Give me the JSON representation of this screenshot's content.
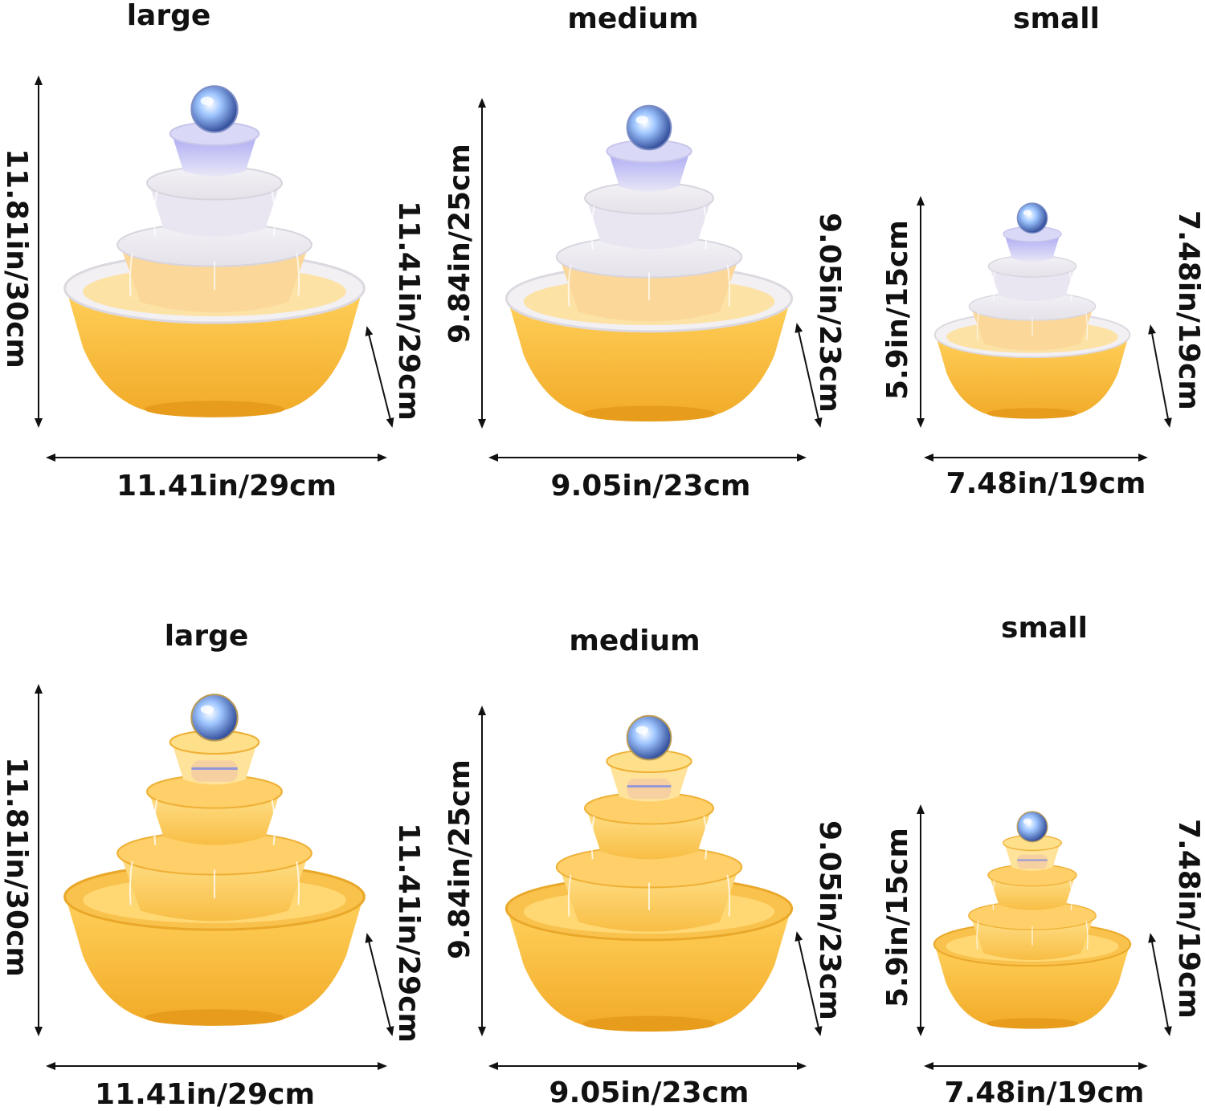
{
  "rows": [
    {
      "theme": "frosted",
      "panels": [
        {
          "size": "large",
          "height": "11.81in/30cm",
          "diagonal": "11.41in/29cm",
          "width": "11.41in/29cm"
        },
        {
          "size": "medium",
          "height": "9.84in/25cm",
          "diagonal": "9.05in/23cm",
          "width": "9.05in/23cm"
        },
        {
          "size": "small",
          "height": "5.9in/15cm",
          "diagonal": "7.48in/19cm",
          "width": "7.48in/19cm"
        }
      ]
    },
    {
      "theme": "amber",
      "panels": [
        {
          "size": "large",
          "height": "11.81in/30cm",
          "diagonal": "11.41in/29cm",
          "width": "11.41in/29cm"
        },
        {
          "size": "medium",
          "height": "9.84in/25cm",
          "diagonal": "9.05in/23cm",
          "width": "9.05in/23cm"
        },
        {
          "size": "small",
          "height": "5.9in/15cm",
          "diagonal": "7.48in/19cm",
          "width": "7.48in/19cm"
        }
      ]
    }
  ],
  "colors": {
    "bowl_amber": "#f6b533",
    "bowl_light": "#ffd36a",
    "frost": "#ecebf0",
    "led_blue": "#9d9cf3",
    "arrow": "#111111"
  },
  "icons": {
    "fountain": "tabletop-water-fountain-illustration",
    "arrow": "double-headed-dimension-arrow"
  }
}
